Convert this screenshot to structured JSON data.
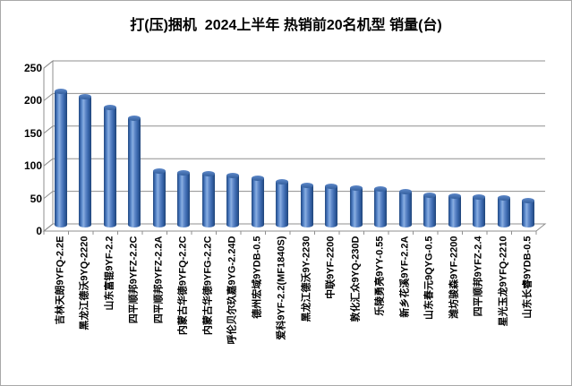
{
  "page": {
    "title": "打(压)捆机  2024上半年 热销前20名机型 销量(台)"
  },
  "chart_data": {
    "type": "bar",
    "subtype": "3d-cylinder",
    "title": "打(压)捆机  2024上半年 热销前20名机型 销量(台)",
    "categories": [
      "吉林天朗9YFQ-2.2E",
      "黑龙江德沃9YQ-2220",
      "山东富锟9YF-2.2",
      "四平顺邦9YFZ-2.2C",
      "四平顺邦9YFZ-2.2A",
      "内蒙古华德9YFQ-2.2C",
      "内蒙古华德9YFG-2.2C",
      "呼伦贝尔玖嘉9YG-2.24D",
      "德州宏域9YDB-0.5",
      "爱科9YF-2.2(MF1840S)",
      "黑龙江德沃9Y-2230",
      "中联9YF-2200",
      "敦化汇众9YQ-230D",
      "乐陵勇亮9YY-0.55",
      "新乡花溪9YF-2.2A",
      "山东春元9QYG-0.5",
      "潍坊骏森9YF-2200",
      "四平顺邦9YFZ-2.4",
      "星光玉龙9YFQ-2210",
      "山东长睿9YDB-0.5"
    ],
    "values": [
      209,
      200,
      184,
      167,
      87,
      84,
      82,
      80,
      75,
      70,
      65,
      63,
      61,
      59,
      55,
      50,
      48,
      47,
      45,
      41
    ],
    "xlabel": "",
    "ylabel": "",
    "ylim": [
      0,
      250
    ],
    "yticks": [
      0,
      50,
      100,
      150,
      200,
      250
    ],
    "grid": true,
    "legend": "none"
  },
  "colors": {
    "bar_main": "#4472C4",
    "bar_highlight": "#8aaee0",
    "bar_edge": "#24497f",
    "grid_line": "#8f8f8f",
    "text": "#000000",
    "background": "#ffffff"
  }
}
